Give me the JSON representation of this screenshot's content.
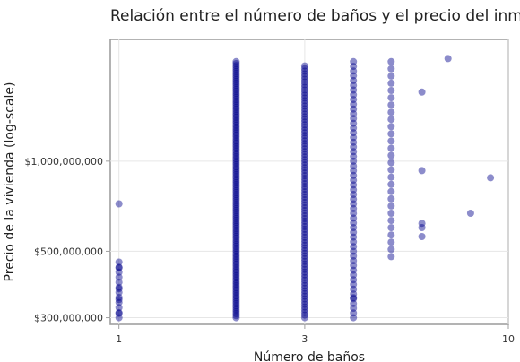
{
  "chart_data": {
    "type": "scatter",
    "title": "Relación entre el número de baños y el precio del inmueble",
    "xlabel": "Número de baños",
    "ylabel": "Precio de la vivienda (log-scale)",
    "x_scale": "log",
    "y_scale": "log",
    "xlim": [
      0.95,
      10
    ],
    "ylim": [
      285000000,
      2550000000
    ],
    "x_ticks": [
      1,
      3,
      10
    ],
    "x_tick_labels": [
      "1",
      "3",
      "10"
    ],
    "y_ticks": [
      300000000,
      500000000,
      1000000000
    ],
    "y_tick_labels": [
      "$300,000,000",
      "$500,000,000",
      "$1,000,000,000"
    ],
    "grid": true,
    "marker_color": "#00008B",
    "marker_opacity": 0.45,
    "columns": [
      {
        "x": 1,
        "min": 300000000,
        "max": 460000000,
        "count": 12,
        "extra": [
          720000000,
          440000000,
          375000000,
          345000000,
          310000000
        ]
      },
      {
        "x": 2,
        "min": 300000000,
        "max": 2150000000,
        "count": 130,
        "extra": []
      },
      {
        "x": 3,
        "min": 300000000,
        "max": 2080000000,
        "count": 95,
        "extra": []
      },
      {
        "x": 4,
        "min": 300000000,
        "max": 2150000000,
        "count": 55,
        "extra": [
          350000000
        ]
      },
      {
        "x": 5,
        "min": 480000000,
        "max": 2150000000,
        "count": 28,
        "extra": []
      },
      {
        "x": 6,
        "min": 560000000,
        "max": 1700000000,
        "count": 5,
        "extra": [
          1700000000,
          930000000,
          620000000,
          600000000,
          560000000
        ]
      }
    ],
    "points": [
      {
        "x": 7,
        "y": 2200000000
      },
      {
        "x": 8,
        "y": 670000000
      },
      {
        "x": 9,
        "y": 880000000
      }
    ]
  }
}
